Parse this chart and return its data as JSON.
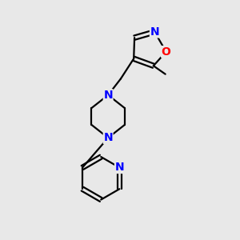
{
  "bg_color": "#e8e8e8",
  "bond_color": "#000000",
  "N_color": "#0000ff",
  "O_color": "#ff0000",
  "line_width": 1.6,
  "font_size": 10,
  "figsize": [
    3.0,
    3.0
  ],
  "dpi": 100,
  "xlim": [
    0,
    10
  ],
  "ylim": [
    0,
    10
  ]
}
